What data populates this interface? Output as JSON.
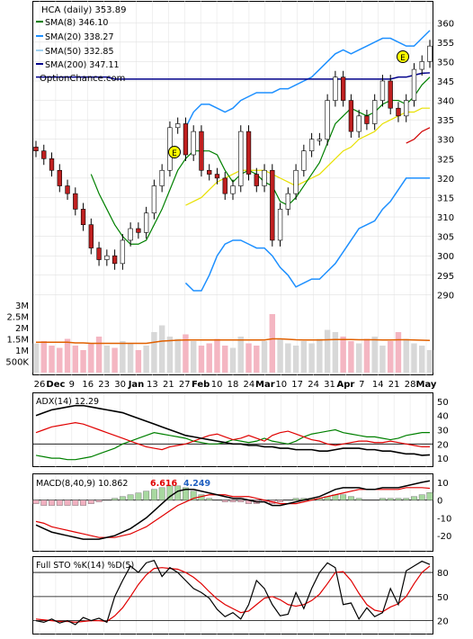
{
  "chart_data": {
    "type": "line",
    "ticker": "HCA (daily) 353.89",
    "brand": "OptionChance.com",
    "legend": [
      {
        "label": "SMA(8) 346.10",
        "color": "#008000"
      },
      {
        "label": "SMA(20) 338.27",
        "color": "#1e90ff"
      },
      {
        "label": "SMA(50) 332.85",
        "color": "#9fd0f0"
      },
      {
        "label": "SMA(200) 347.11",
        "color": "#00008b"
      }
    ],
    "earnings_marker": "E",
    "price_axis": {
      "ticks": [
        "360",
        "355",
        "350",
        "345",
        "340",
        "335",
        "330",
        "325",
        "320",
        "315",
        "310",
        "305",
        "300",
        "295",
        "290"
      ],
      "ylim": [
        288,
        364
      ]
    },
    "volume_axis": {
      "ticks": [
        "3M",
        "2.5M",
        "2M",
        "1.5M",
        "1M",
        "500K"
      ],
      "ylim": [
        0,
        3200000
      ]
    },
    "date_labels": [
      "26",
      "Dec",
      "9",
      "16",
      "23",
      "30",
      "Jan",
      "13",
      "21",
      "27",
      "Feb",
      "10",
      "18",
      "24",
      "Mar",
      "10",
      "17",
      "24",
      "31",
      "Apr",
      "7",
      "14",
      "21",
      "28",
      "May"
    ],
    "price": {
      "close": [
        327,
        325,
        322,
        318,
        316,
        312,
        308,
        302,
        299,
        300,
        298,
        304,
        307,
        306,
        311,
        318,
        322,
        333,
        334,
        326,
        332,
        322,
        321,
        320,
        316,
        318,
        332,
        321,
        318,
        322,
        304,
        312,
        316,
        322,
        327,
        330,
        330,
        340,
        346,
        340,
        332,
        336,
        334,
        340,
        345,
        338,
        336,
        340,
        348,
        350,
        354
      ],
      "sma8": [
        null,
        null,
        null,
        null,
        null,
        null,
        null,
        321,
        316,
        312,
        308,
        305,
        303,
        303,
        304,
        308,
        312,
        317,
        322,
        325,
        327,
        327,
        327,
        326,
        322,
        319,
        321,
        322,
        321,
        319,
        318,
        314,
        313,
        315,
        318,
        321,
        324,
        329,
        334,
        336,
        338,
        337,
        336,
        337,
        339,
        340,
        340,
        339,
        341,
        344,
        346
      ],
      "sma20": [
        null,
        null,
        null,
        null,
        null,
        null,
        null,
        null,
        null,
        null,
        null,
        null,
        null,
        null,
        null,
        null,
        null,
        null,
        null,
        313,
        314,
        315,
        317,
        319,
        320,
        321,
        322,
        322,
        322,
        322,
        321,
        320,
        319,
        318,
        319,
        320,
        321,
        323,
        325,
        327,
        328,
        330,
        331,
        332,
        334,
        335,
        336,
        337,
        337,
        338,
        338
      ],
      "sma50": [
        null,
        null,
        null,
        null,
        null,
        null,
        null,
        null,
        null,
        null,
        null,
        null,
        null,
        null,
        null,
        null,
        null,
        null,
        null,
        null,
        null,
        null,
        null,
        null,
        null,
        null,
        null,
        null,
        null,
        null,
        null,
        null,
        null,
        null,
        null,
        null,
        null,
        null,
        null,
        null,
        null,
        null,
        null,
        null,
        null,
        null,
        null,
        329,
        330,
        332,
        333
      ],
      "sma200": [
        346,
        346,
        346,
        346,
        346,
        346,
        346,
        346,
        346,
        346,
        345.5,
        345.5,
        345.5,
        345.5,
        345.5,
        345.5,
        345.5,
        345.5,
        345.5,
        345.5,
        345.5,
        345.5,
        345.5,
        345.5,
        345.5,
        345.5,
        345.5,
        345.5,
        345.5,
        345.5,
        345.5,
        345.5,
        345.5,
        345.5,
        345.5,
        345.5,
        345.5,
        345.5,
        345.5,
        345.5,
        345.5,
        345.5,
        345.5,
        345.5,
        345.5,
        345.5,
        346,
        346,
        346.5,
        347,
        347.1
      ],
      "bb_upper": [
        null,
        null,
        null,
        null,
        null,
        null,
        null,
        null,
        null,
        null,
        null,
        null,
        null,
        null,
        null,
        null,
        null,
        null,
        null,
        333,
        337,
        339,
        339,
        338,
        337,
        338,
        340,
        341,
        342,
        342,
        342,
        343,
        343,
        344,
        345,
        346,
        348,
        350,
        352,
        353,
        352,
        353,
        354,
        355,
        356,
        356,
        355,
        354,
        354,
        356,
        358
      ],
      "bb_lower": [
        null,
        null,
        null,
        null,
        null,
        null,
        null,
        null,
        null,
        null,
        null,
        null,
        null,
        null,
        null,
        null,
        null,
        null,
        null,
        293,
        291,
        291,
        295,
        300,
        303,
        304,
        304,
        303,
        302,
        302,
        300,
        297,
        295,
        292,
        293,
        294,
        294,
        296,
        298,
        301,
        304,
        307,
        308,
        309,
        312,
        314,
        317,
        320,
        320,
        320,
        320
      ]
    },
    "volume_m": [
      1.3,
      1.4,
      1.2,
      1.1,
      1.5,
      1.2,
      1.0,
      1.3,
      1.6,
      1.2,
      1.1,
      1.4,
      1.3,
      1.0,
      1.2,
      1.8,
      2.1,
      1.6,
      1.5,
      1.7,
      1.4,
      1.2,
      1.3,
      1.5,
      1.2,
      1.1,
      1.6,
      1.3,
      1.2,
      1.4,
      2.6,
      1.5,
      1.3,
      1.2,
      1.4,
      1.3,
      1.5,
      1.9,
      1.8,
      1.6,
      1.4,
      1.3,
      1.5,
      1.6,
      1.2,
      1.4,
      1.8,
      1.5,
      1.3,
      1.2,
      1.0
    ],
    "volume_avg_m": [
      1.35,
      1.35,
      1.35,
      1.35,
      1.35,
      1.32,
      1.32,
      1.3,
      1.3,
      1.3,
      1.3,
      1.3,
      1.3,
      1.3,
      1.3,
      1.35,
      1.4,
      1.42,
      1.44,
      1.45,
      1.45,
      1.45,
      1.45,
      1.45,
      1.45,
      1.45,
      1.45,
      1.45,
      1.45,
      1.45,
      1.5,
      1.5,
      1.48,
      1.46,
      1.45,
      1.45,
      1.45,
      1.46,
      1.47,
      1.47,
      1.47,
      1.46,
      1.46,
      1.46,
      1.45,
      1.45,
      1.46,
      1.46,
      1.45,
      1.44,
      1.43
    ],
    "adx": {
      "label": "ADX(14) 12.29",
      "ticks": [
        "50",
        "40",
        "30",
        "20",
        "10"
      ],
      "ylim": [
        5,
        55
      ],
      "ref_line": 20,
      "adx": [
        40,
        42,
        44,
        45,
        46,
        47,
        47,
        46,
        45,
        44,
        43,
        42,
        40,
        38,
        36,
        34,
        32,
        30,
        28,
        26,
        25,
        24,
        23,
        22,
        21,
        20,
        20,
        19,
        19,
        18,
        18,
        17,
        17,
        16,
        16,
        16,
        15,
        15,
        16,
        17,
        17,
        17,
        16,
        16,
        15,
        15,
        14,
        13,
        13,
        12,
        12.29
      ],
      "pdi": [
        12,
        11,
        10,
        10,
        9,
        9,
        10,
        11,
        13,
        15,
        17,
        20,
        22,
        24,
        26,
        28,
        27,
        26,
        25,
        24,
        22,
        21,
        20,
        20,
        21,
        23,
        22,
        21,
        22,
        24,
        22,
        21,
        20,
        22,
        25,
        27,
        28,
        29,
        30,
        28,
        27,
        26,
        25,
        25,
        24,
        23,
        24,
        26,
        27,
        28,
        28
      ],
      "mdi": [
        28,
        30,
        32,
        33,
        34,
        35,
        34,
        32,
        30,
        28,
        26,
        24,
        22,
        20,
        18,
        17,
        16,
        18,
        19,
        20,
        22,
        24,
        26,
        27,
        25,
        23,
        24,
        26,
        24,
        22,
        26,
        28,
        29,
        27,
        25,
        23,
        22,
        20,
        19,
        20,
        21,
        22,
        22,
        21,
        21,
        22,
        21,
        20,
        19,
        18,
        18
      ]
    },
    "macd": {
      "label": "MACD(8,40,9) 10.862",
      "values": [
        "6.616",
        "4.249"
      ],
      "ticks": [
        "10",
        "0",
        "-10",
        "-20"
      ],
      "ylim": [
        -28,
        14
      ],
      "macd": [
        -14,
        -16,
        -18,
        -19,
        -20,
        -21,
        -22,
        -22,
        -22,
        -21,
        -20,
        -18,
        -16,
        -13,
        -10,
        -6,
        -2,
        2,
        5,
        6,
        6,
        5,
        4,
        3,
        2,
        1,
        1,
        0,
        -1,
        -1,
        -3,
        -3,
        -2,
        -1,
        0,
        1,
        2,
        4,
        6,
        7,
        7,
        7,
        6,
        6,
        7,
        7,
        7,
        8,
        9,
        10,
        10.86
      ],
      "signal": [
        -12,
        -13,
        -15,
        -16,
        -17,
        -18,
        -19,
        -20,
        -21,
        -21,
        -21,
        -20,
        -19,
        -17,
        -15,
        -12,
        -9,
        -6,
        -3,
        -1,
        1,
        2,
        3,
        3,
        3,
        2,
        2,
        2,
        1,
        0,
        -1,
        -2,
        -2,
        -2,
        -1,
        0,
        1,
        2,
        3,
        4,
        5,
        6,
        6,
        6,
        6,
        6,
        6,
        7,
        7,
        7,
        6.62
      ],
      "hist": [
        -2,
        -3,
        -3,
        -3,
        -3,
        -3,
        -3,
        -2,
        -1,
        0,
        1,
        2,
        3,
        4,
        5,
        6,
        7,
        8,
        8,
        7,
        5,
        3,
        1,
        0,
        -1,
        -1,
        -1,
        -2,
        -2,
        -1,
        -2,
        -1,
        0,
        1,
        1,
        1,
        1,
        2,
        3,
        3,
        2,
        1,
        0,
        0,
        1,
        1,
        1,
        1,
        2,
        3,
        4.25
      ]
    },
    "stoch": {
      "label": "Full STO %K(14) %D(5)",
      "ticks": [
        "80",
        "50",
        "20"
      ],
      "ylim": [
        5,
        98
      ],
      "ref_lines": [
        80,
        50,
        20
      ],
      "k": [
        20,
        18,
        22,
        17,
        20,
        15,
        24,
        20,
        23,
        18,
        50,
        70,
        88,
        80,
        92,
        95,
        75,
        86,
        80,
        70,
        60,
        55,
        48,
        34,
        25,
        30,
        22,
        40,
        70,
        60,
        40,
        26,
        28,
        55,
        35,
        60,
        80,
        92,
        86,
        40,
        42,
        22,
        36,
        25,
        30,
        60,
        40,
        82,
        88,
        94,
        90
      ],
      "d": [
        22,
        21,
        20,
        19,
        19,
        18,
        19,
        20,
        20,
        19,
        26,
        36,
        50,
        65,
        77,
        85,
        86,
        85,
        84,
        80,
        74,
        66,
        56,
        47,
        40,
        35,
        30,
        32,
        40,
        48,
        50,
        46,
        40,
        38,
        40,
        45,
        53,
        66,
        80,
        81,
        70,
        54,
        40,
        33,
        31,
        37,
        41,
        50,
        66,
        80,
        88
      ]
    }
  }
}
